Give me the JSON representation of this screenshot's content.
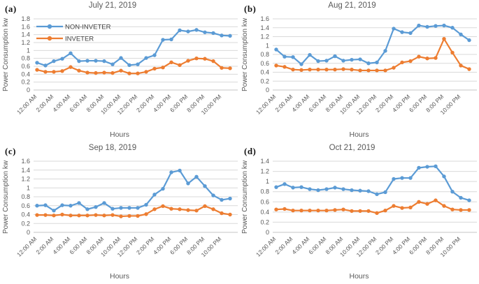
{
  "figure": {
    "xlabel": "Hours",
    "ylabel": "Power Consumption kw",
    "colors": {
      "non_inveter": "#5B9BD5",
      "inveter": "#ED7D31",
      "gridline": "#D9D9D9",
      "axis_line": "#C6C6C6",
      "tick_text": "#595959",
      "legend_text": "#404040",
      "title_text": "#595959",
      "background": "#FFFFFF"
    }
  },
  "chart_data": [
    {
      "type": "line",
      "panel_label": "(a)",
      "title": "July 21, 2019",
      "xlabel": "Hours",
      "ylabel": "Power Consumption kw",
      "ylim": [
        0,
        1.8
      ],
      "ytick_step": 0.2,
      "grid": "horizontal",
      "tick_every": 2,
      "legend": {
        "visible": true,
        "position": "top-left"
      },
      "categories": [
        "12:00 AM",
        "1:00 AM",
        "2:00 AM",
        "3:00 AM",
        "4:00 AM",
        "5:00 AM",
        "6:00 AM",
        "7:00 AM",
        "8:00 AM",
        "9:00 AM",
        "10:00 AM",
        "11:00 AM",
        "12:00 PM",
        "1:00 PM",
        "2:00 PM",
        "3:00 PM",
        "4:00 PM",
        "5:00 PM",
        "6:00 PM",
        "7:00 PM",
        "8:00 PM",
        "9:00 PM",
        "10:00 PM",
        "11:00 PM"
      ],
      "series": [
        {
          "name": "NON-INVETER",
          "color": "#5B9BD5",
          "values": [
            0.69,
            0.62,
            0.73,
            0.79,
            0.93,
            0.73,
            0.74,
            0.74,
            0.73,
            0.65,
            0.81,
            0.63,
            0.65,
            0.81,
            0.88,
            1.27,
            1.28,
            1.51,
            1.48,
            1.52,
            1.46,
            1.44,
            1.38,
            1.37
          ]
        },
        {
          "name": "INVETER",
          "color": "#ED7D31",
          "values": [
            0.51,
            0.46,
            0.46,
            0.48,
            0.58,
            0.49,
            0.44,
            0.43,
            0.44,
            0.43,
            0.49,
            0.42,
            0.42,
            0.46,
            0.54,
            0.57,
            0.7,
            0.63,
            0.74,
            0.8,
            0.79,
            0.73,
            0.56,
            0.55
          ]
        }
      ]
    },
    {
      "type": "line",
      "panel_label": "(b)",
      "title": "Aug 21, 2019",
      "xlabel": "Hours",
      "ylabel": "Power Consumption kw",
      "ylim": [
        0,
        1.6
      ],
      "ytick_step": 0.2,
      "grid": "horizontal",
      "tick_every": 2,
      "legend": {
        "visible": false
      },
      "categories": [
        "12:00 AM",
        "1:00 AM",
        "2:00 AM",
        "3:00 AM",
        "4:00 AM",
        "5:00 AM",
        "6:00 AM",
        "7:00 AM",
        "8:00 AM",
        "9:00 AM",
        "10:00 AM",
        "11:00 AM",
        "12:00 PM",
        "1:00 PM",
        "2:00 PM",
        "3:00 PM",
        "4:00 PM",
        "5:00 PM",
        "6:00 PM",
        "7:00 PM",
        "8:00 PM",
        "9:00 PM",
        "10:00 PM",
        "11:00 PM"
      ],
      "series": [
        {
          "name": "NON-INVETER",
          "color": "#5B9BD5",
          "values": [
            0.91,
            0.75,
            0.74,
            0.58,
            0.79,
            0.65,
            0.66,
            0.76,
            0.66,
            0.68,
            0.69,
            0.6,
            0.62,
            0.88,
            1.38,
            1.3,
            1.28,
            1.45,
            1.42,
            1.44,
            1.45,
            1.4,
            1.25,
            1.12
          ]
        },
        {
          "name": "INVETER",
          "color": "#ED7D31",
          "values": [
            0.55,
            0.52,
            0.46,
            0.45,
            0.46,
            0.46,
            0.46,
            0.46,
            0.47,
            0.46,
            0.44,
            0.44,
            0.44,
            0.44,
            0.5,
            0.62,
            0.65,
            0.75,
            0.71,
            0.72,
            1.15,
            0.84,
            0.55,
            0.47
          ]
        }
      ]
    },
    {
      "type": "line",
      "panel_label": "(c)",
      "title": "Sep 18, 2019",
      "xlabel": "Hours",
      "ylabel": "Power Consumption kw",
      "ylim": [
        0,
        1.6
      ],
      "ytick_step": 0.2,
      "grid": "horizontal",
      "tick_every": 2,
      "legend": {
        "visible": false
      },
      "categories": [
        "12:00 AM",
        "1:00 AM",
        "2:00 AM",
        "3:00 AM",
        "4:00 AM",
        "5:00 AM",
        "6:00 AM",
        "7:00 AM",
        "8:00 AM",
        "9:00 AM",
        "10:00 AM",
        "11:00 AM",
        "12:00 PM",
        "1:00 PM",
        "2:00 PM",
        "3:00 PM",
        "4:00 PM",
        "5:00 PM",
        "6:00 PM",
        "7:00 PM",
        "8:00 PM",
        "9:00 PM",
        "10:00 PM",
        "11:00 PM"
      ],
      "series": [
        {
          "name": "NON-INVETER",
          "color": "#5B9BD5",
          "values": [
            0.6,
            0.61,
            0.49,
            0.61,
            0.6,
            0.66,
            0.52,
            0.57,
            0.66,
            0.53,
            0.55,
            0.55,
            0.55,
            0.62,
            0.85,
            0.98,
            1.35,
            1.39,
            1.1,
            1.25,
            1.04,
            0.83,
            0.73,
            0.76
          ]
        },
        {
          "name": "INVETER",
          "color": "#ED7D31",
          "values": [
            0.39,
            0.39,
            0.38,
            0.4,
            0.38,
            0.38,
            0.38,
            0.39,
            0.38,
            0.39,
            0.36,
            0.37,
            0.37,
            0.41,
            0.52,
            0.59,
            0.53,
            0.52,
            0.5,
            0.49,
            0.59,
            0.52,
            0.43,
            0.4
          ]
        }
      ]
    },
    {
      "type": "line",
      "panel_label": "(d)",
      "title": "Oct 21, 2019",
      "xlabel": "Hours",
      "ylabel": "Power Consumption kw",
      "ylim": [
        0,
        1.4
      ],
      "ytick_step": 0.2,
      "grid": "horizontal",
      "tick_every": 2,
      "legend": {
        "visible": false
      },
      "categories": [
        "12:00 AM",
        "1:00 AM",
        "2:00 AM",
        "3:00 AM",
        "4:00 AM",
        "5:00 AM",
        "6:00 AM",
        "7:00 AM",
        "8:00 AM",
        "9:00 AM",
        "10:00 AM",
        "11:00 AM",
        "12:00 PM",
        "1:00 PM",
        "2:00 PM",
        "3:00 PM",
        "4:00 PM",
        "5:00 PM",
        "6:00 PM",
        "7:00 PM",
        "8:00 PM",
        "9:00 PM",
        "10:00 PM",
        "11:00 PM"
      ],
      "series": [
        {
          "name": "NON-INVETER",
          "color": "#5B9BD5",
          "values": [
            0.89,
            0.95,
            0.88,
            0.89,
            0.85,
            0.83,
            0.85,
            0.88,
            0.85,
            0.83,
            0.82,
            0.81,
            0.75,
            0.79,
            1.05,
            1.07,
            1.07,
            1.27,
            1.29,
            1.3,
            1.1,
            0.8,
            0.68,
            0.63
          ]
        },
        {
          "name": "INVETER",
          "color": "#ED7D31",
          "values": [
            0.45,
            0.46,
            0.43,
            0.43,
            0.43,
            0.43,
            0.43,
            0.44,
            0.45,
            0.42,
            0.42,
            0.42,
            0.38,
            0.43,
            0.52,
            0.48,
            0.49,
            0.6,
            0.56,
            0.63,
            0.52,
            0.45,
            0.44,
            0.44
          ]
        }
      ]
    }
  ]
}
